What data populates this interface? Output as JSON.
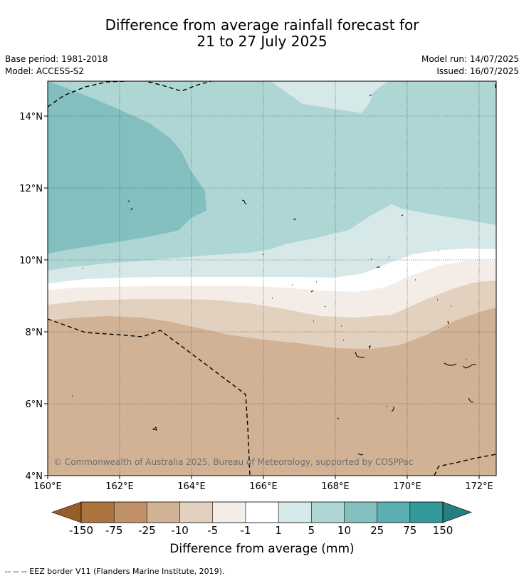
{
  "title": {
    "line1": "Difference from average rainfall forecast for",
    "line2": "21 to 27 July 2025"
  },
  "meta": {
    "base_period": "Base period: 1981-2018",
    "model": "Model: ACCESS-S2",
    "model_run": "Model run: 14/07/2025",
    "issued": "Issued: 16/07/2025"
  },
  "map": {
    "lat_labels": [
      "14°N",
      "12°N",
      "10°N",
      "8°N",
      "6°N",
      "4°N"
    ],
    "lon_labels": [
      "160°E",
      "162°E",
      "164°E",
      "166°E",
      "168°E",
      "170°E",
      "172°E"
    ],
    "copyright": "© Commonwealth of Australia 2025, Bureau of Meteorology, supported by COSPPac"
  },
  "colorbar": {
    "label": "Difference from average (mm)",
    "ticks": [
      "-150",
      "-75",
      "-25",
      "-10",
      "-5",
      "-1",
      "1",
      "5",
      "10",
      "25",
      "75",
      "150"
    ],
    "colors": [
      "#955d2a",
      "#ad7440",
      "#c09068",
      "#d2b294",
      "#e3d1c0",
      "#f3ece7",
      "#ffffff",
      "#d6e9e8",
      "#aed6d5",
      "#83bfbf",
      "#5aaeaf",
      "#33999a",
      "#257e80"
    ]
  },
  "footnote": "--  --  -- EEZ border V11 (Flanders Marine Institute, 2019)."
}
